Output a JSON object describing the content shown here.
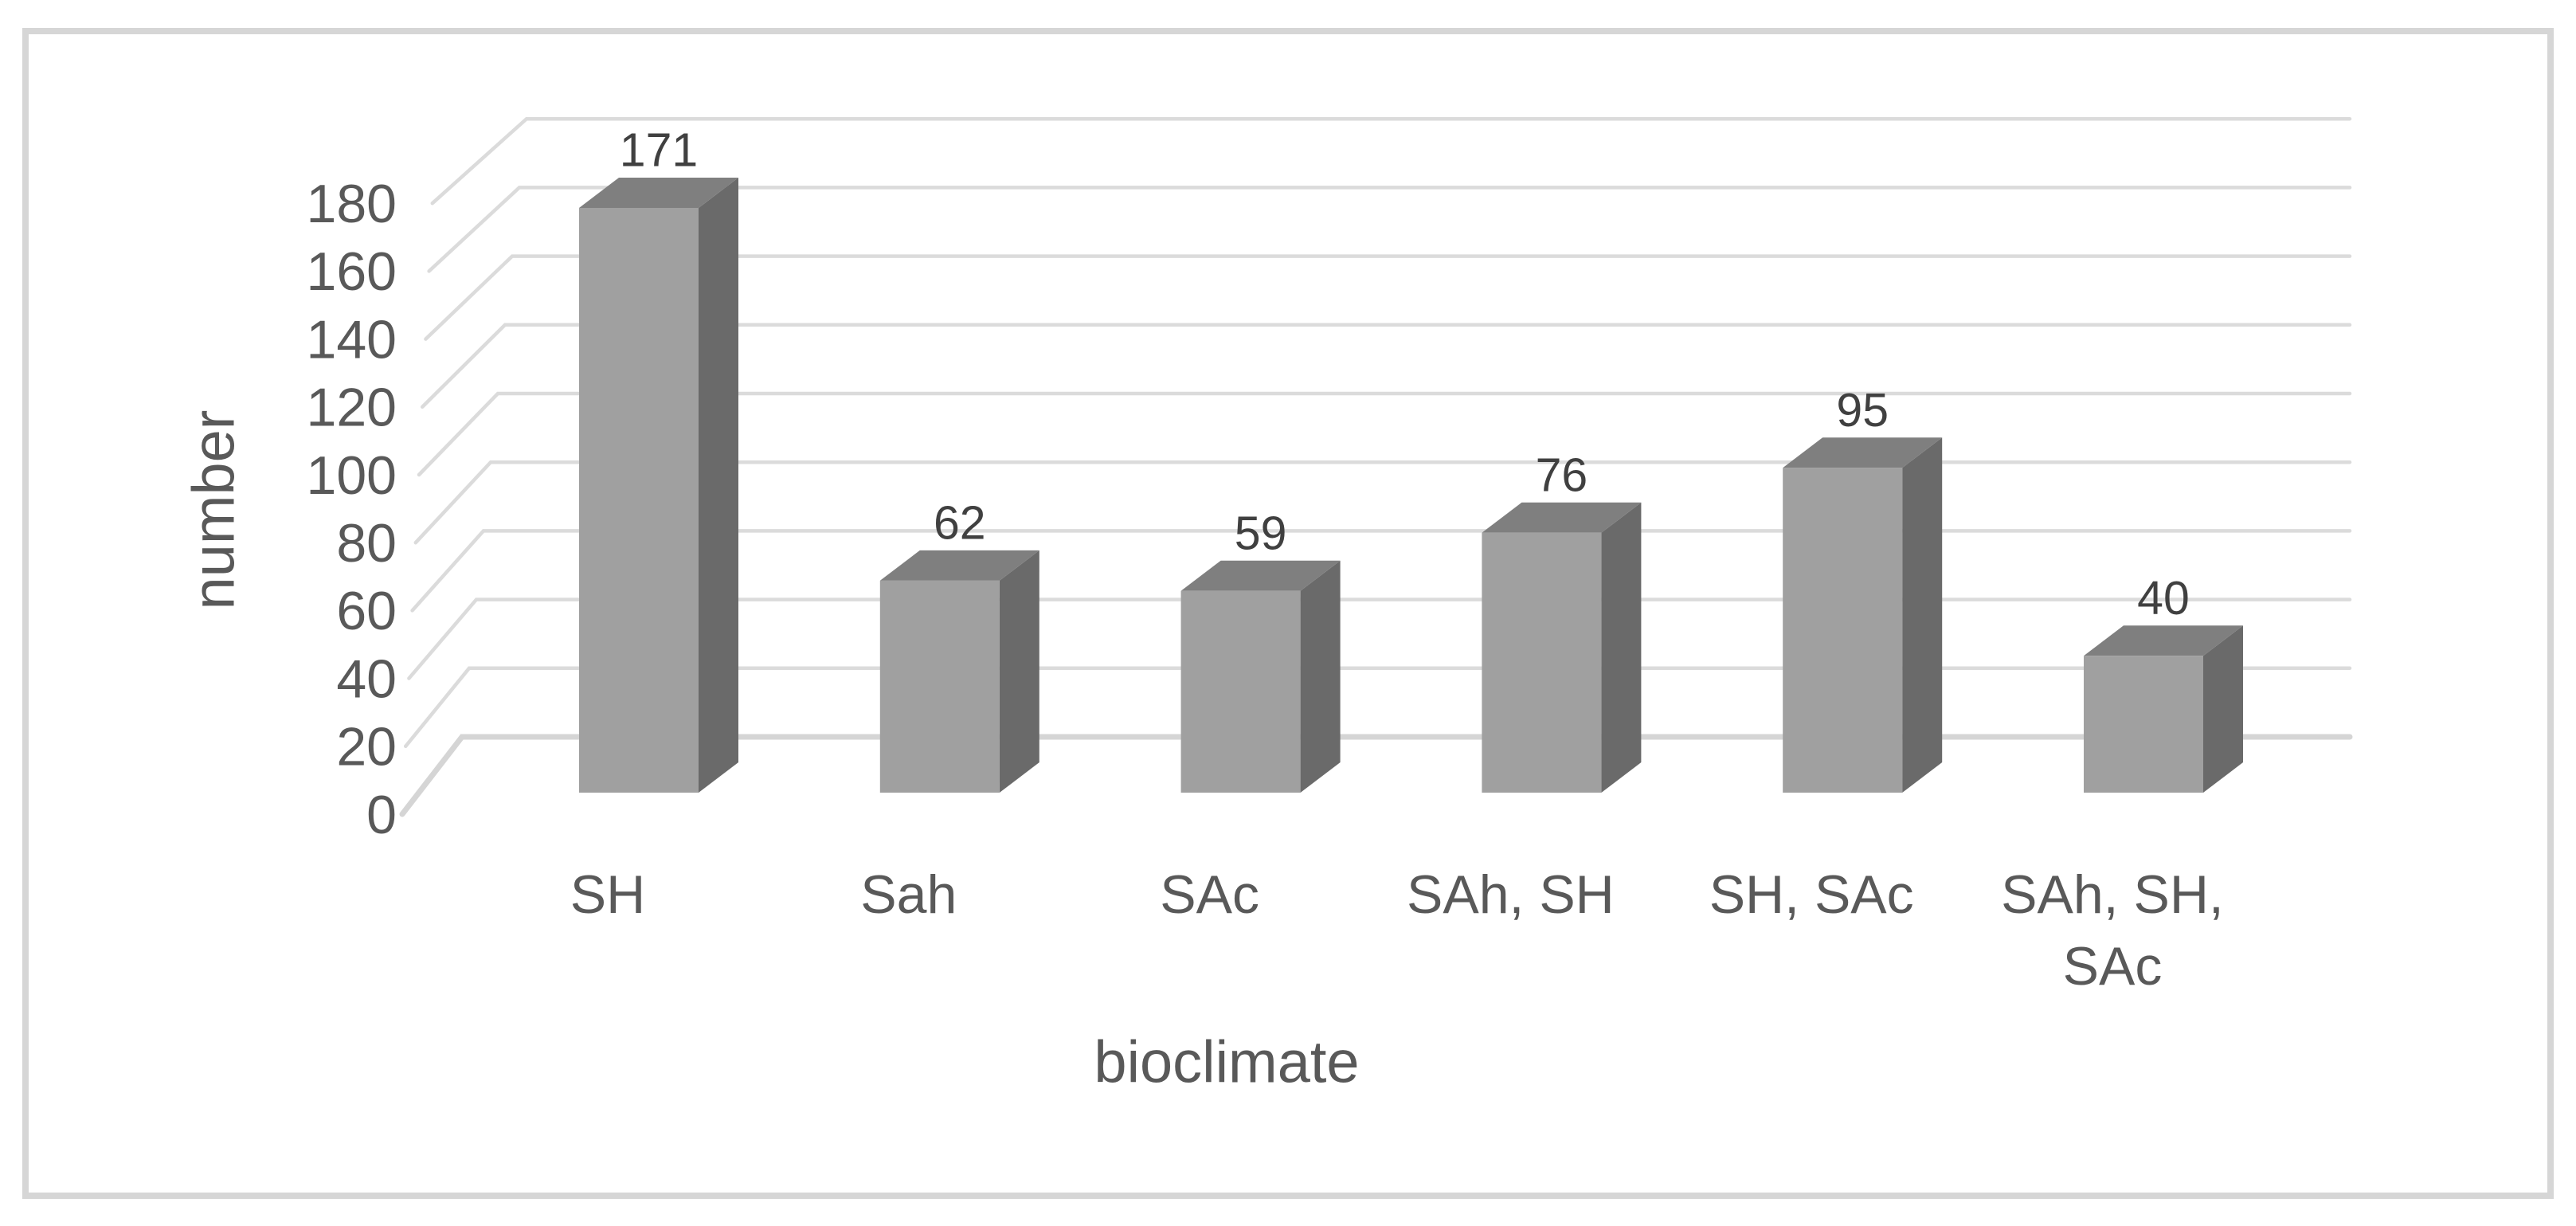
{
  "chart_data": {
    "type": "bar",
    "style": "3d-column",
    "title": "",
    "categories": [
      "SH",
      "Sah",
      "SAc",
      "SAh, SH",
      "SH, SAc",
      "SAh, SH, SAc"
    ],
    "category_label_lines": [
      [
        "SH"
      ],
      [
        "Sah"
      ],
      [
        "SAc"
      ],
      [
        "SAh, SH"
      ],
      [
        "SH, SAc"
      ],
      [
        "SAh, SH,",
        "SAc"
      ]
    ],
    "values": [
      171,
      62,
      59,
      76,
      95,
      40
    ],
    "data_labels": [
      "171",
      "62",
      "59",
      "76",
      "95",
      "40"
    ],
    "xlabel": "bioclimate",
    "ylabel": "number",
    "ylim": [
      0,
      180
    ],
    "ytick_step": 20,
    "yticks": [
      0,
      20,
      40,
      60,
      80,
      100,
      120,
      140,
      160,
      180
    ],
    "grid": true,
    "legend": "none"
  },
  "colors": {
    "bar_front": "#a0a0a0",
    "bar_top": "#7f7f7f",
    "bar_side": "#6a6a6a",
    "gridline": "#dbdbdb",
    "floor_line": "#d5d5d5",
    "text": "#595959",
    "border": "#d6d6d6",
    "background": "#ffffff"
  }
}
